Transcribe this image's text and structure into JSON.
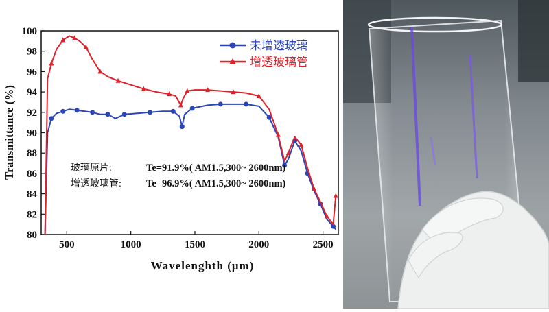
{
  "chart_data": {
    "type": "line",
    "xlabel": "Wavelenghth (μm)",
    "ylabel": "Transmittance (%)",
    "xlim": [
      300,
      2620
    ],
    "ylim": [
      80,
      100
    ],
    "xticks": [
      500,
      1000,
      1500,
      2000,
      2500
    ],
    "xtick_labels": [
      "500",
      "1000",
      "1500",
      "2000",
      "2500"
    ],
    "yticks": [
      80,
      82,
      84,
      86,
      88,
      90,
      92,
      94,
      96,
      98,
      100
    ],
    "ytick_labels": [
      "80",
      "82",
      "84",
      "86",
      "88",
      "90",
      "92",
      "94",
      "96",
      "98",
      "100"
    ],
    "legend_position": "top-right",
    "series": [
      {
        "name": "未增透玻璃",
        "color": "#2b45b5",
        "marker": "circle",
        "x": [
          330,
          350,
          380,
          420,
          470,
          520,
          580,
          640,
          700,
          760,
          820,
          880,
          950,
          1050,
          1150,
          1250,
          1330,
          1380,
          1400,
          1420,
          1480,
          1600,
          1700,
          1800,
          1900,
          2000,
          2080,
          2150,
          2200,
          2230,
          2280,
          2330,
          2380,
          2430,
          2480,
          2530,
          2580,
          2600
        ],
        "values": [
          80,
          90,
          91.4,
          91.9,
          92.1,
          92.3,
          92.2,
          92.1,
          92.0,
          91.8,
          91.8,
          91.4,
          91.8,
          91.9,
          92.0,
          92.1,
          92.1,
          91.6,
          90.6,
          91.8,
          92.4,
          92.7,
          92.8,
          92.8,
          92.8,
          92.6,
          91.5,
          89.6,
          86.8,
          87.4,
          89.2,
          88.2,
          86.0,
          84.3,
          83.0,
          81.5,
          80.8,
          80.5
        ]
      },
      {
        "name": "增透玻璃管",
        "color": "#e0212b",
        "marker": "triangle",
        "x": [
          330,
          350,
          380,
          420,
          470,
          520,
          560,
          600,
          650,
          700,
          760,
          820,
          900,
          1000,
          1100,
          1200,
          1300,
          1350,
          1390,
          1410,
          1440,
          1500,
          1600,
          1700,
          1800,
          1900,
          2000,
          2080,
          2150,
          2200,
          2230,
          2280,
          2330,
          2380,
          2430,
          2480,
          2530,
          2580,
          2600
        ],
        "values": [
          80,
          95.3,
          96.8,
          98.2,
          99.1,
          99.5,
          99.3,
          99.0,
          98.4,
          97.2,
          96.0,
          95.5,
          95.1,
          94.7,
          94.3,
          94.0,
          93.8,
          93.6,
          92.7,
          93.4,
          94.1,
          94.2,
          94.2,
          94.1,
          94.0,
          93.9,
          93.6,
          92.3,
          89.8,
          87.2,
          88.0,
          89.6,
          88.8,
          86.5,
          84.5,
          83.2,
          81.8,
          81.0,
          83.8
        ]
      }
    ],
    "annotations": [
      {
        "label": "玻璃原片:",
        "value": "Te=91.9%(  AM1.5,300~ 2600nm)"
      },
      {
        "label": "增透玻璃管:",
        "value": "Te=96.9%(  AM1.5,300~ 2600nm)"
      }
    ]
  },
  "photo": {
    "subject": "glass-tube-held-in-gloved-hand",
    "colors": {
      "background": "#7d868c",
      "desk": "#9a9fa3",
      "glove": "#eef0f0",
      "reflection": "#6a4be0"
    }
  }
}
